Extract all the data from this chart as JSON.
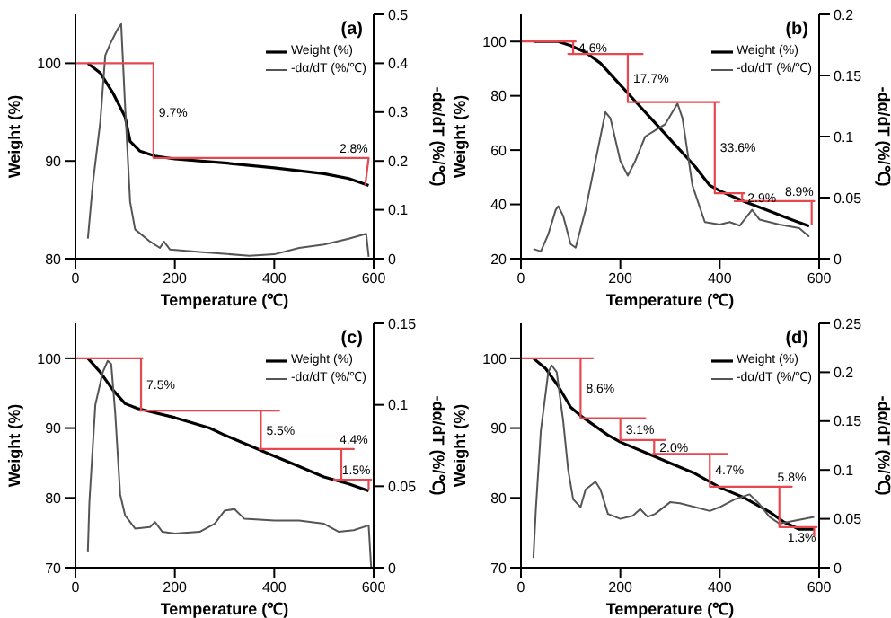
{
  "chart_data": [
    {
      "type": "line",
      "xlabel": "Temperature (℃)",
      "ylabel": "Weight (%)",
      "y2label": "-dα/dT (%/℃)",
      "xlim": [
        0,
        600
      ],
      "xticks": [
        0,
        200,
        400,
        600
      ],
      "ylim": [
        80,
        105
      ],
      "yticks": [
        80,
        90,
        100
      ],
      "y2lim": [
        0,
        0.5
      ],
      "y2ticks": [
        0,
        0.1,
        0.2,
        0.3,
        0.4,
        0.5
      ],
      "legend": "top right",
      "marker": "none",
      "series": [
        {
          "name": "Weight (%)",
          "color": "#000000",
          "x": [
            25,
            50,
            75,
            100,
            110,
            130,
            160,
            200,
            300,
            400,
            500,
            550,
            590
          ],
          "values": [
            100,
            99,
            97,
            94.5,
            92,
            91,
            90.5,
            90.2,
            89.8,
            89.3,
            88.7,
            88.2,
            87.5
          ]
        },
        {
          "name": "-dα/dT (%/℃)",
          "color": "#555555",
          "axis": "y2",
          "x": [
            25,
            35,
            50,
            60,
            70,
            85,
            92,
            100,
            110,
            120,
            150,
            170,
            178,
            190,
            250,
            350,
            400,
            450,
            500,
            550,
            585,
            590
          ],
          "values": [
            0.041,
            0.154,
            0.28,
            0.416,
            0.44,
            0.47,
            0.48,
            0.31,
            0.116,
            0.06,
            0.035,
            0.022,
            0.035,
            0.019,
            0.014,
            0.006,
            0.009,
            0.022,
            0.029,
            0.041,
            0.051,
            0.004
          ]
        },
        {
          "color": "#e8474f",
          "x": [
            0,
            157,
            157,
            160,
            590,
            583
          ],
          "values": [
            100,
            100,
            90.3,
            90.3,
            90.3,
            87.5
          ]
        }
      ],
      "annotations": [
        "(a)",
        {
          "text": "9.7%",
          "x": 157,
          "y": 95
        },
        {
          "text": "2.8%",
          "x": 560,
          "y": 90.3
        }
      ]
    },
    {
      "type": "line",
      "xlabel": "Temperature (℃)",
      "ylabel": "Weight (%)",
      "y2label": "-dα/dT (%/℃)",
      "xlim": [
        0,
        600
      ],
      "xticks": [
        0,
        200,
        400,
        600
      ],
      "ylim": [
        20,
        110
      ],
      "yticks": [
        20,
        40,
        60,
        80,
        100
      ],
      "y2lim": [
        0,
        0.2
      ],
      "y2ticks": [
        0,
        0.05,
        0.1,
        0.15,
        0.2
      ],
      "legend": "top right",
      "marker": "none",
      "series": [
        {
          "name": "Weight (%)",
          "color": "#000000",
          "x": [
            25,
            75,
            100,
            130,
            160,
            200,
            230,
            270,
            310,
            350,
            380,
            400,
            450,
            500,
            550,
            580
          ],
          "values": [
            100,
            100,
            98.5,
            96,
            92,
            84,
            78,
            70,
            62,
            54,
            47,
            45,
            41,
            37.5,
            34,
            32
          ]
        },
        {
          "name": "-dα/dT (%/℃)",
          "color": "#555555",
          "axis": "y2",
          "x": [
            25,
            40,
            55,
            70,
            75,
            85,
            100,
            110,
            130,
            155,
            170,
            180,
            200,
            215,
            230,
            250,
            270,
            290,
            315,
            325,
            345,
            370,
            400,
            420,
            440,
            465,
            480,
            520,
            560,
            580
          ],
          "values": [
            0.008,
            0.006,
            0.02,
            0.04,
            0.043,
            0.035,
            0.012,
            0.009,
            0.04,
            0.09,
            0.12,
            0.115,
            0.08,
            0.068,
            0.08,
            0.1,
            0.105,
            0.11,
            0.127,
            0.115,
            0.06,
            0.03,
            0.028,
            0.03,
            0.027,
            0.04,
            0.032,
            0.028,
            0.025,
            0.018
          ]
        },
        {
          "color": "#e8474f",
          "x": [
            0,
            110,
            105,
            105,
            95,
            245,
            215,
            215,
            215,
            400,
            390,
            390,
            390,
            450,
            445,
            445,
            430,
            590,
            585,
            585
          ],
          "values": [
            100,
            100,
            100,
            95.4,
            95.4,
            95.4,
            95.4,
            77.7,
            77.7,
            77.7,
            77.7,
            44.1,
            44.1,
            44.1,
            44.1,
            41.2,
            41.2,
            41.2,
            41.2,
            32.3
          ]
        }
      ],
      "annotations": [
        "(b)",
        {
          "text": "4.6%",
          "x": 105,
          "y": 97.7
        },
        {
          "text": "17.7%",
          "x": 215,
          "y": 86.5
        },
        {
          "text": "33.6%",
          "x": 390,
          "y": 61
        },
        {
          "text": "2.9%",
          "x": 445,
          "y": 42.6
        },
        {
          "text": "8.9%",
          "x": 560,
          "y": 41.2
        }
      ]
    },
    {
      "type": "line",
      "xlabel": "Temperature (℃)",
      "ylabel": "Weight (%)",
      "y2label": "-dα/dT (%/℃)",
      "xlim": [
        0,
        600
      ],
      "xticks": [
        0,
        200,
        400,
        600
      ],
      "ylim": [
        70,
        105
      ],
      "yticks": [
        70,
        80,
        90,
        100
      ],
      "y2lim": [
        0,
        0.15
      ],
      "y2ticks": [
        0,
        0.05,
        0.1,
        0.15
      ],
      "legend": "top right",
      "marker": "none",
      "series": [
        {
          "name": "Weight (%)",
          "color": "#000000",
          "x": [
            25,
            50,
            75,
            100,
            125,
            200,
            270,
            300,
            350,
            400,
            450,
            500,
            550,
            590
          ],
          "values": [
            100,
            98,
            95.5,
            93.5,
            92.8,
            91.5,
            90,
            89,
            87.5,
            86,
            84.5,
            83,
            82,
            81
          ]
        },
        {
          "name": "-dα/dT (%/℃)",
          "color": "#555555",
          "axis": "y2",
          "x": [
            25,
            28,
            40,
            55,
            65,
            72,
            80,
            90,
            100,
            120,
            150,
            160,
            175,
            200,
            250,
            280,
            300,
            320,
            340,
            400,
            450,
            500,
            530,
            560,
            590,
            595
          ],
          "values": [
            0.01,
            0.04,
            0.1,
            0.12,
            0.127,
            0.125,
            0.095,
            0.045,
            0.032,
            0.024,
            0.025,
            0.028,
            0.022,
            0.021,
            0.022,
            0.027,
            0.035,
            0.036,
            0.03,
            0.029,
            0.029,
            0.027,
            0.022,
            0.023,
            0.026,
            0
          ]
        },
        {
          "color": "#e8474f",
          "x": [
            0,
            135,
            132,
            132,
            130,
            410,
            373,
            373,
            370,
            560,
            535,
            535,
            520,
            595,
            590,
            590
          ],
          "values": [
            100,
            100,
            100,
            92.5,
            92.5,
            92.5,
            92.5,
            87,
            87,
            87,
            87,
            82.6,
            82.6,
            82.6,
            82.6,
            81.1
          ]
        }
      ],
      "annotations": [
        "(c)",
        {
          "text": "7.5%",
          "x": 132,
          "y": 96.2
        },
        {
          "text": "5.5%",
          "x": 373,
          "y": 89.7
        },
        {
          "text": "4.4%",
          "x": 560,
          "y": 87
        },
        {
          "text": "1.5%",
          "x": 565,
          "y": 82.6
        }
      ]
    },
    {
      "type": "line",
      "xlabel": "Temperature (℃)",
      "ylabel": "Weight (%)",
      "y2label": "-dα/dT (%/℃)",
      "xlim": [
        0,
        600
      ],
      "xticks": [
        0,
        200,
        400,
        600
      ],
      "ylim": [
        70,
        105
      ],
      "yticks": [
        70,
        80,
        90,
        100
      ],
      "y2lim": [
        0,
        0.25
      ],
      "y2ticks": [
        0,
        0.05,
        0.1,
        0.15,
        0.2,
        0.25
      ],
      "legend": "top right",
      "marker": "none",
      "series": [
        {
          "name": "Weight (%)",
          "color": "#000000",
          "x": [
            25,
            50,
            75,
            100,
            125,
            175,
            200,
            250,
            300,
            350,
            400,
            450,
            500,
            530,
            560,
            590
          ],
          "values": [
            100,
            98.5,
            96,
            93,
            91.5,
            89,
            88,
            86.5,
            85,
            83.5,
            81.5,
            80,
            78,
            76.5,
            75.5,
            75.5
          ]
        },
        {
          "name": "-dα/dT (%/℃)",
          "color": "#555555",
          "axis": "y2",
          "x": [
            25,
            30,
            40,
            55,
            62,
            72,
            85,
            95,
            105,
            120,
            130,
            150,
            160,
            175,
            200,
            225,
            240,
            255,
            270,
            300,
            320,
            350,
            380,
            400,
            430,
            460,
            480,
            500,
            520,
            550,
            590
          ],
          "values": [
            0.01,
            0.06,
            0.14,
            0.2,
            0.207,
            0.2,
            0.15,
            0.1,
            0.07,
            0.062,
            0.08,
            0.088,
            0.08,
            0.055,
            0.05,
            0.053,
            0.06,
            0.052,
            0.055,
            0.067,
            0.066,
            0.062,
            0.058,
            0.062,
            0.07,
            0.075,
            0.065,
            0.052,
            0.045,
            0.048,
            0.052
          ]
        },
        {
          "color": "#e8474f",
          "x": [
            0,
            145,
            120,
            120,
            120,
            250,
            200,
            200,
            200,
            290,
            268,
            268,
            265,
            415,
            380,
            380,
            380,
            545,
            520,
            520,
            520,
            595,
            590,
            590
          ],
          "values": [
            100,
            100,
            100,
            91.4,
            91.4,
            91.4,
            91.4,
            88.3,
            88.3,
            88.3,
            88.3,
            86.3,
            86.3,
            86.3,
            86.3,
            81.6,
            81.6,
            81.6,
            81.6,
            75.8,
            75.8,
            75.8,
            75.8,
            74.5
          ]
        }
      ],
      "annotations": [
        "(d)",
        {
          "text": "8.6%",
          "x": 120,
          "y": 95.7
        },
        {
          "text": "3.1%",
          "x": 200,
          "y": 89.8
        },
        {
          "text": "2.0%",
          "x": 268,
          "y": 87.3
        },
        {
          "text": "4.7%",
          "x": 380,
          "y": 84
        },
        {
          "text": "5.8%",
          "x": 545,
          "y": 81.6
        },
        {
          "text": "1.3%",
          "x": 565,
          "y": 75.8
        }
      ]
    }
  ]
}
